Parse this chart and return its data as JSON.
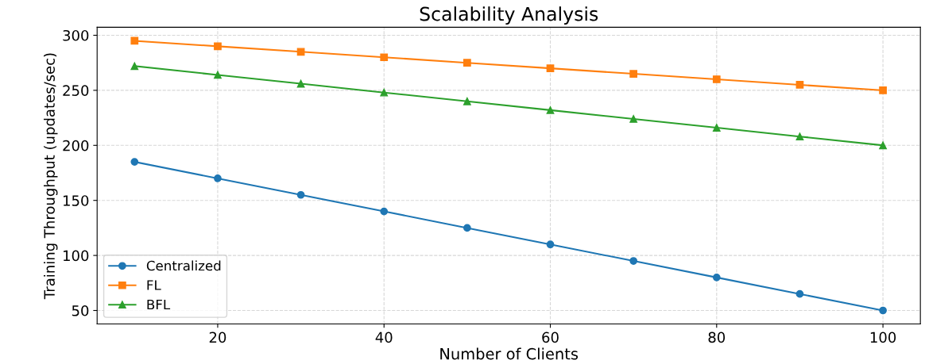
{
  "chart_data": {
    "type": "line",
    "title": "Scalability Analysis",
    "xlabel": "Number of Clients",
    "ylabel": "Training Throughput (updates/sec)",
    "x": [
      10,
      20,
      30,
      40,
      50,
      60,
      70,
      80,
      90,
      100
    ],
    "series": [
      {
        "name": "Centralized",
        "color": "#1f77b4",
        "marker": "circle",
        "values": [
          185,
          170,
          155,
          140,
          125,
          110,
          95,
          80,
          65,
          50
        ]
      },
      {
        "name": "FL",
        "color": "#ff7f0e",
        "marker": "square",
        "values": [
          295,
          290,
          285,
          280,
          275,
          270,
          265,
          260,
          255,
          250
        ]
      },
      {
        "name": "BFL",
        "color": "#2ca02c",
        "marker": "triangle",
        "values": [
          272,
          264,
          256,
          248,
          240,
          232,
          224,
          216,
          208,
          200
        ]
      }
    ],
    "xlim": [
      5.5,
      104.5
    ],
    "ylim": [
      37.75,
      307.25
    ],
    "xticks": [
      20,
      40,
      60,
      80,
      100
    ],
    "yticks": [
      50,
      100,
      150,
      200,
      250,
      300
    ],
    "grid": true,
    "legend": "bottom left",
    "line_style": "solid"
  }
}
